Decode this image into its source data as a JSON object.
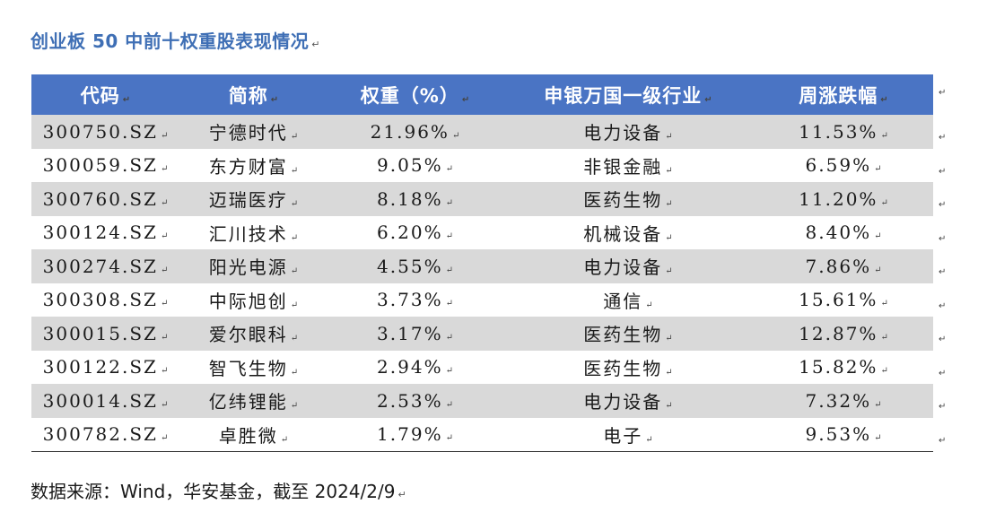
{
  "title": "创业板 50 中前十权重股表现情况",
  "para_mark": "↵",
  "table": {
    "headers": [
      "代码",
      "简称",
      "权重（%）",
      "申银万国一级行业",
      "周涨跌幅"
    ],
    "rows": [
      [
        "300750.SZ",
        "宁德时代",
        "21.96%",
        "电力设备",
        "11.53%"
      ],
      [
        "300059.SZ",
        "东方财富",
        "9.05%",
        "非银金融",
        "6.59%"
      ],
      [
        "300760.SZ",
        "迈瑞医疗",
        "8.18%",
        "医药生物",
        "11.20%"
      ],
      [
        "300124.SZ",
        "汇川技术",
        "6.20%",
        "机械设备",
        "8.40%"
      ],
      [
        "300274.SZ",
        "阳光电源",
        "4.55%",
        "电力设备",
        "7.86%"
      ],
      [
        "300308.SZ",
        "中际旭创",
        "3.73%",
        "通信",
        "15.61%"
      ],
      [
        "300015.SZ",
        "爱尔眼科",
        "3.17%",
        "医药生物",
        "12.87%"
      ],
      [
        "300122.SZ",
        "智飞生物",
        "2.94%",
        "医药生物",
        "15.82%"
      ],
      [
        "300014.SZ",
        "亿纬锂能",
        "2.53%",
        "电力设备",
        "7.32%"
      ],
      [
        "300782.SZ",
        "卓胜微",
        "1.79%",
        "电子",
        "9.53%"
      ]
    ]
  },
  "source": "数据来源：Wind，华安基金，截至 2024/2/9"
}
